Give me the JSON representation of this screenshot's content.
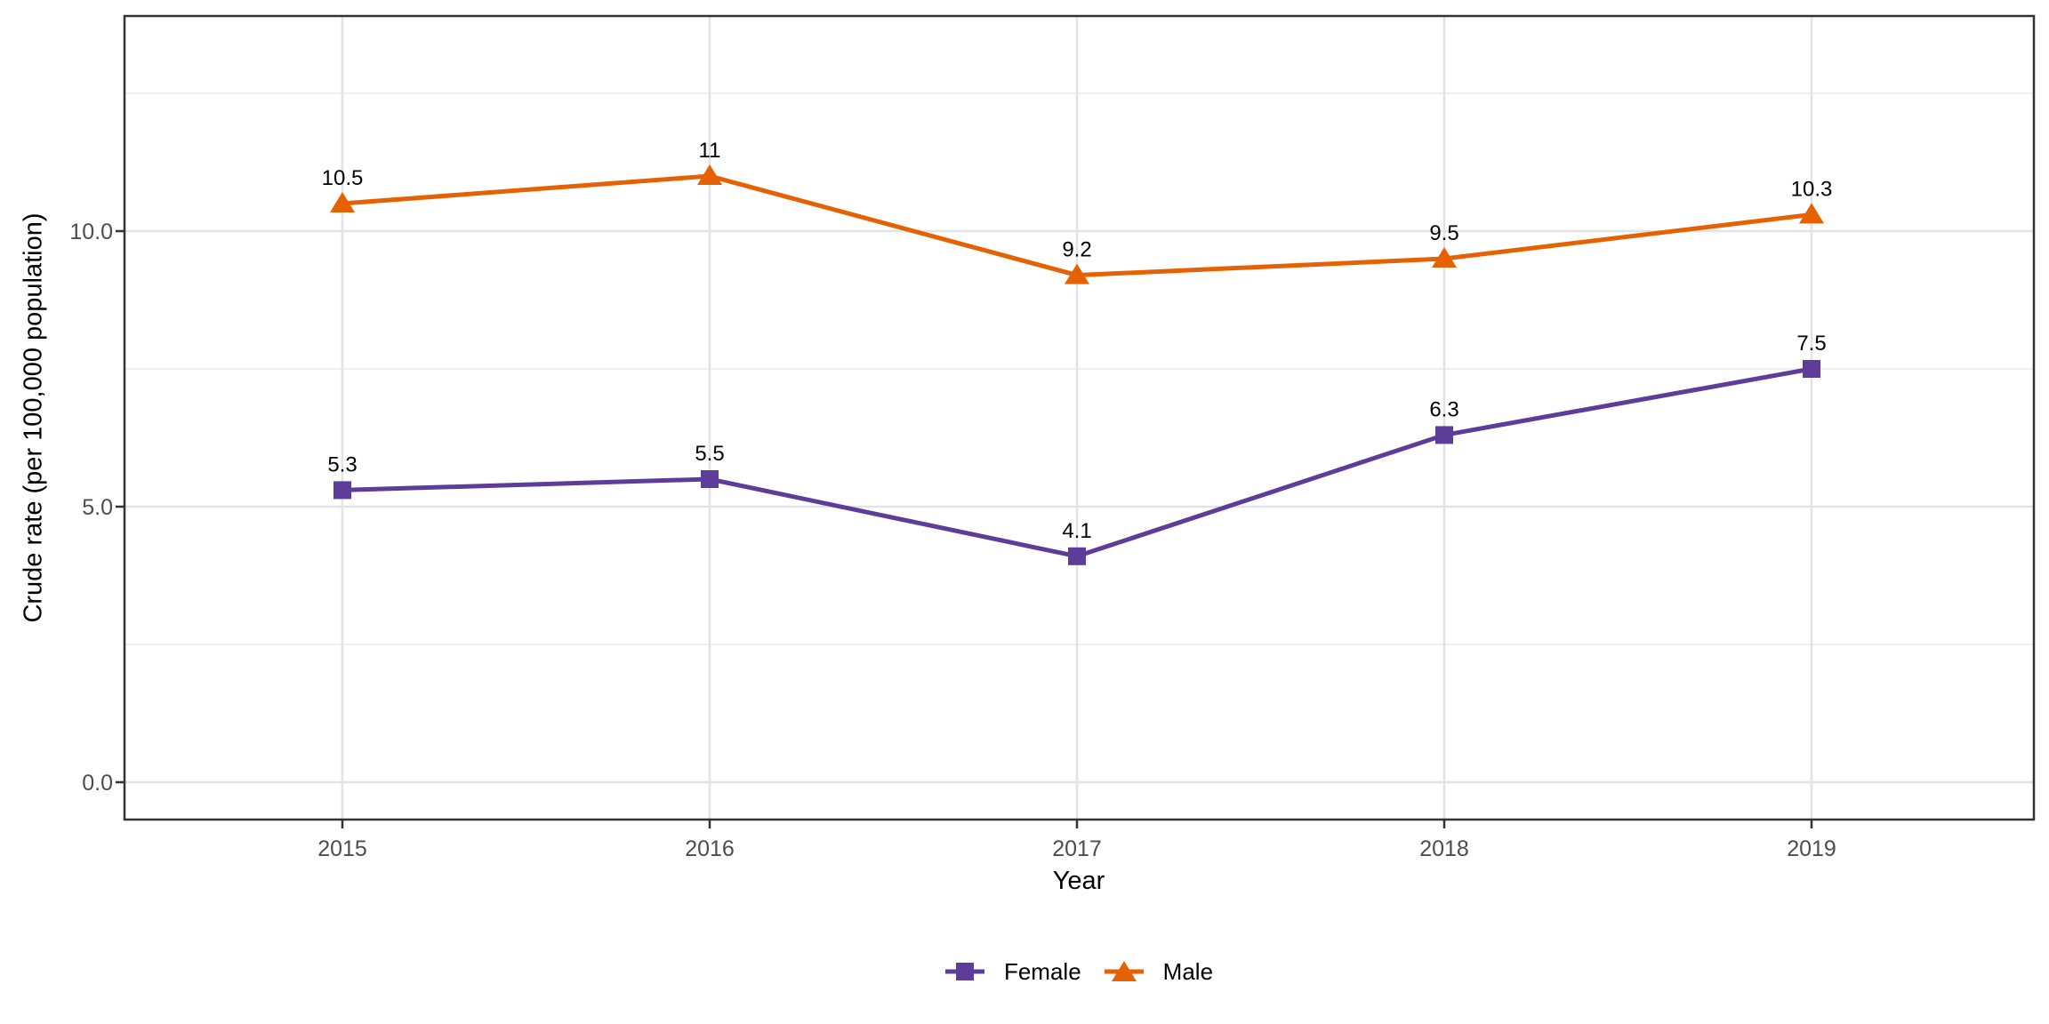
{
  "figure": {
    "background": "#FFFFFF"
  },
  "chart_data": {
    "type": "line",
    "title": "",
    "xlabel": "Year",
    "ylabel": "Crude rate (per 100,000 population)",
    "x": [
      2015,
      2016,
      2017,
      2018,
      2019
    ],
    "x_tick_labels": [
      "2015",
      "2016",
      "2017",
      "2018",
      "2019"
    ],
    "series": [
      {
        "name": "Female",
        "color": "#5E3C99",
        "marker": "square",
        "values": [
          5.3,
          5.5,
          4.1,
          6.3,
          7.5
        ],
        "point_labels": [
          "5.3",
          "5.5",
          "4.1",
          "6.3",
          "7.5"
        ]
      },
      {
        "name": "Male",
        "color": "#E66101",
        "marker": "triangle",
        "values": [
          10.5,
          11,
          9.2,
          9.5,
          10.3
        ],
        "point_labels": [
          "10.5",
          "11",
          "9.2",
          "9.5",
          "10.3"
        ]
      }
    ],
    "y_ticks": [
      {
        "value": 0,
        "label": "0.0"
      },
      {
        "value": 5,
        "label": "5.0"
      },
      {
        "value": 10,
        "label": "10.0"
      }
    ],
    "y_minor_gridlines": [
      2.5,
      7.5,
      12.5
    ],
    "ylim": [
      -0.68,
      13.9
    ],
    "grid": "on",
    "legend_position": "bottom",
    "colors": {
      "tick_label": "#4D4D4D",
      "axis_title": "#000000",
      "point_label": "#000000",
      "grid_major": "#E3E3E3",
      "grid_minor": "#F0F0F0",
      "panel_border": "#333333"
    }
  }
}
